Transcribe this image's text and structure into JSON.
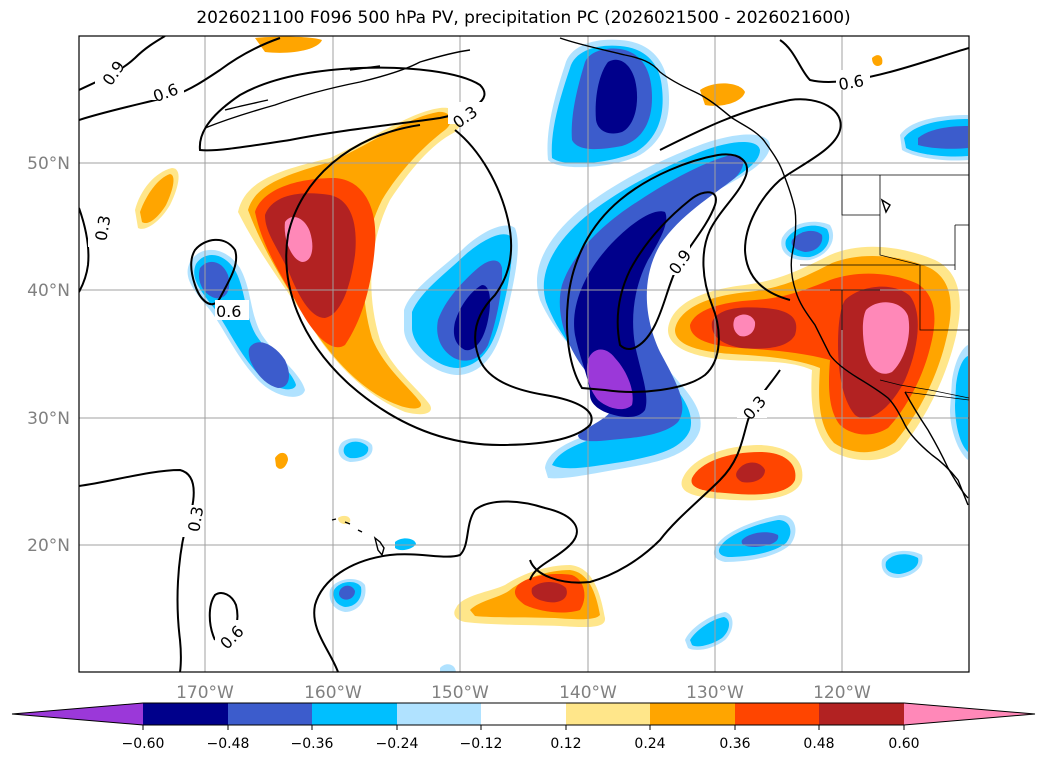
{
  "title": "2026021100 F096 500 hPa PV, precipitation PC (2026021500 - 2026021600)",
  "lon_labels": [
    "170°W",
    "160°W",
    "150°W",
    "140°W",
    "130°W",
    "120°W"
  ],
  "lat_labels": [
    "50°N",
    "40°N",
    "30°N",
    "20°N"
  ],
  "contour_labels": [
    "0.9",
    "0.6",
    "0.3",
    "0.3",
    "0.6",
    "0.9",
    "0.3",
    "0.3",
    "0.6",
    "0.6"
  ],
  "colorbar": {
    "ticks": [
      "−0.60",
      "−0.48",
      "−0.36",
      "−0.24",
      "−0.12",
      "0.12",
      "0.24",
      "0.36",
      "0.48",
      "0.60"
    ],
    "colors": [
      "#9b38d9",
      "#00008b",
      "#3c5ccc",
      "#00bfff",
      "#b0e2ff",
      "#ffffff",
      "#ffe68a",
      "#ffa500",
      "#ff4500",
      "#b22222",
      "#ff88b8"
    ]
  },
  "colors": {
    "neg_060": "#9b38d9",
    "neg_048": "#00008b",
    "neg_036": "#3c5ccc",
    "neg_024": "#00bfff",
    "neg_012": "#b0e2ff",
    "pos_012": "#ffe68a",
    "pos_024": "#ffa500",
    "pos_036": "#ff4500",
    "pos_048": "#b22222",
    "pos_060": "#ff88b8"
  }
}
